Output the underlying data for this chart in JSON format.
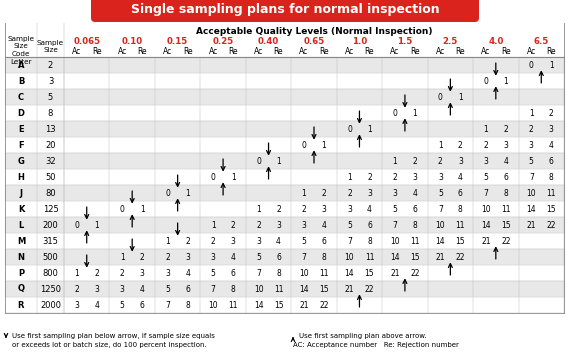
{
  "title": "Single sampling plans for normal inspection",
  "title_bg": "#d9231c",
  "title_color": "#ffffff",
  "header_aql": "Acceptable Quality Levels (Normal Inspection)",
  "col_header_color": "#d9231c",
  "aql_levels": [
    "0.065",
    "0.10",
    "0.15",
    "0.25",
    "0.40",
    "0.65",
    "1.0",
    "1.5",
    "2.5",
    "4.0",
    "6.5"
  ],
  "row_labels": [
    "A",
    "B",
    "C",
    "D",
    "E",
    "F",
    "G",
    "H",
    "J",
    "K",
    "L",
    "M",
    "N",
    "P",
    "Q",
    "R"
  ],
  "sample_sizes": [
    2,
    3,
    5,
    8,
    13,
    20,
    32,
    50,
    80,
    125,
    200,
    315,
    500,
    800,
    1250,
    2000
  ],
  "table_data": {
    "A": {
      "0.065": "",
      "0.10": "",
      "0.15": "",
      "0.25": "",
      "0.40": "",
      "0.65": "",
      "1.0": "",
      "1.5": "",
      "2.5": "",
      "4.0": "",
      "6.5": "0 1"
    },
    "B": {
      "0.065": "",
      "0.10": "",
      "0.15": "",
      "0.25": "",
      "0.40": "",
      "0.65": "",
      "1.0": "",
      "1.5": "",
      "2.5": "",
      "4.0": "0 1",
      "6.5": ""
    },
    "C": {
      "0.065": "",
      "0.10": "",
      "0.15": "",
      "0.25": "",
      "0.40": "",
      "0.65": "",
      "1.0": "",
      "1.5": "",
      "2.5": "0 1",
      "4.0": "",
      "6.5": ""
    },
    "D": {
      "0.065": "",
      "0.10": "",
      "0.15": "",
      "0.25": "",
      "0.40": "",
      "0.65": "",
      "1.0": "",
      "1.5": "0 1",
      "2.5": "",
      "4.0": "",
      "6.5": "1 2"
    },
    "E": {
      "0.065": "",
      "0.10": "",
      "0.15": "",
      "0.25": "",
      "0.40": "",
      "0.65": "",
      "1.0": "0 1",
      "1.5": "",
      "2.5": "",
      "4.0": "1 2",
      "6.5": "2 3"
    },
    "F": {
      "0.065": "",
      "0.10": "",
      "0.15": "",
      "0.25": "",
      "0.40": "",
      "0.65": "0 1",
      "1.0": "",
      "1.5": "",
      "2.5": "1 2",
      "4.0": "2 3",
      "6.5": "3 4"
    },
    "G": {
      "0.065": "",
      "0.10": "",
      "0.15": "",
      "0.25": "",
      "0.40": "0 1",
      "0.65": "",
      "1.0": "",
      "1.5": "1 2",
      "2.5": "2 3",
      "4.0": "3 4",
      "6.5": "5 6"
    },
    "H": {
      "0.065": "",
      "0.10": "",
      "0.15": "",
      "0.25": "0 1",
      "0.40": "",
      "0.65": "",
      "1.0": "1 2",
      "1.5": "2 3",
      "2.5": "3 4",
      "4.0": "5 6",
      "6.5": "7 8"
    },
    "J": {
      "0.065": "",
      "0.10": "",
      "0.15": "0 1",
      "0.25": "",
      "0.40": "",
      "0.65": "1 2",
      "1.0": "2 3",
      "1.5": "3 4",
      "2.5": "5 6",
      "4.0": "7 8",
      "6.5": "10 11"
    },
    "K": {
      "0.065": "",
      "0.10": "0 1",
      "0.15": "",
      "0.25": "",
      "0.40": "1 2",
      "0.65": "2 3",
      "1.0": "3 4",
      "1.5": "5 6",
      "2.5": "7 8",
      "4.0": "10 11",
      "6.5": "14 15"
    },
    "L": {
      "0.065": "0 1",
      "0.10": "",
      "0.15": "",
      "0.25": "1 2",
      "0.40": "2 3",
      "0.65": "3 4",
      "1.0": "5 6",
      "1.5": "7 8",
      "2.5": "10 11",
      "4.0": "14 15",
      "6.5": "21 22"
    },
    "M": {
      "0.065": "",
      "0.10": "",
      "0.15": "1 2",
      "0.25": "2 3",
      "0.40": "3 4",
      "0.65": "5 6",
      "1.0": "7 8",
      "1.5": "10 11",
      "2.5": "14 15",
      "4.0": "21 22",
      "6.5": ""
    },
    "N": {
      "0.065": "",
      "0.10": "1 2",
      "0.15": "2 3",
      "0.25": "3 4",
      "0.40": "5 6",
      "0.65": "7 8",
      "1.0": "10 11",
      "1.5": "14 15",
      "2.5": "21 22",
      "4.0": "",
      "6.5": ""
    },
    "P": {
      "0.065": "1 2",
      "0.10": "2 3",
      "0.15": "3 4",
      "0.25": "5 6",
      "0.40": "7 8",
      "0.65": "10 11",
      "1.0": "14 15",
      "1.5": "21 22",
      "2.5": "",
      "4.0": "",
      "6.5": ""
    },
    "Q": {
      "0.065": "2 3",
      "0.10": "3 4",
      "0.15": "5 6",
      "0.25": "7 8",
      "0.40": "10 11",
      "0.65": "14 15",
      "1.0": "21 22",
      "1.5": "",
      "2.5": "",
      "4.0": "",
      "6.5": ""
    },
    "R": {
      "0.065": "3 4",
      "0.10": "5 6",
      "0.15": "7 8",
      "0.25": "10 11",
      "0.40": "14 15",
      "0.65": "21 22",
      "1.0": "",
      "1.5": "",
      "2.5": "",
      "4.0": "",
      "6.5": ""
    }
  },
  "arrows_down": [
    [
      "A",
      "4.0"
    ],
    [
      "B",
      "2.5"
    ],
    [
      "C",
      "1.5"
    ],
    [
      "D",
      "1.0"
    ],
    [
      "E",
      "0.65"
    ],
    [
      "F",
      "0.40"
    ],
    [
      "G",
      "0.25"
    ],
    [
      "H",
      "0.15"
    ],
    [
      "J",
      "0.10"
    ],
    [
      "K",
      "0.065"
    ],
    [
      "L",
      "0.15"
    ],
    [
      "M",
      "0.10"
    ],
    [
      "N",
      "0.065"
    ]
  ],
  "arrows_up": [
    [
      "B",
      "6.5"
    ],
    [
      "C",
      "4.0"
    ],
    [
      "D",
      "2.5"
    ],
    [
      "E",
      "1.5"
    ],
    [
      "F",
      "1.0"
    ],
    [
      "G",
      "0.65"
    ],
    [
      "H",
      "0.40"
    ],
    [
      "J",
      "0.25"
    ],
    [
      "K",
      "0.15"
    ],
    [
      "L",
      "0.10"
    ],
    [
      "M",
      "0.065"
    ],
    [
      "N",
      "4.0"
    ],
    [
      "P",
      "2.5"
    ],
    [
      "Q",
      "1.5"
    ],
    [
      "R",
      "1.0"
    ]
  ],
  "bg_color": "#ffffff",
  "stripe_color": "#e8e8e8",
  "grid_color": "#bbbbbb"
}
